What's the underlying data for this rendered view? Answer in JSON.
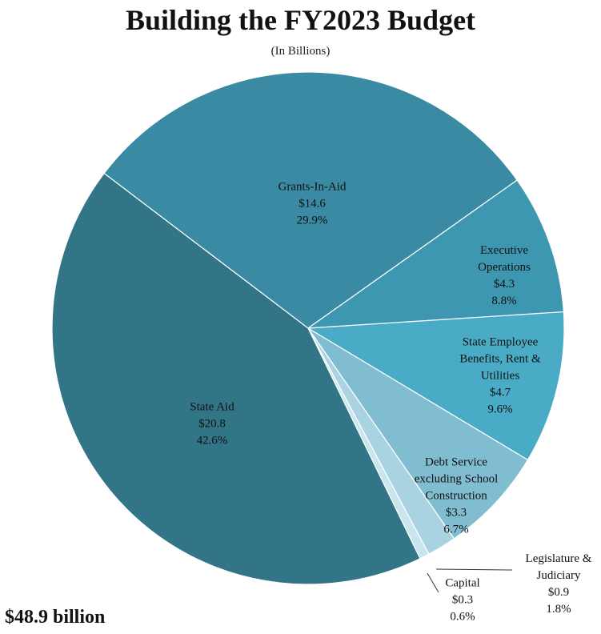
{
  "chart_data": {
    "type": "pie",
    "title": "Building the FY2023 Budget",
    "subtitle": "(In Billions)",
    "total_label": "$48.9 billion",
    "categories": [
      "Grants-In-Aid",
      "Executive Operations",
      "State Employee Benefits, Rent & Utilities",
      "Debt Service excluding School Construction",
      "Legislature & Judiciary",
      "Capital",
      "State Aid"
    ],
    "values": [
      14.6,
      4.3,
      4.7,
      3.3,
      0.9,
      0.3,
      20.8
    ],
    "value_labels": [
      "$14.6",
      "$4.3",
      "$4.7",
      "$3.3",
      "$0.9",
      "$0.3",
      "$20.8"
    ],
    "percents": [
      29.9,
      8.8,
      9.6,
      6.7,
      1.8,
      0.6,
      42.6
    ],
    "percent_labels": [
      "29.9%",
      "8.8%",
      "9.6%",
      "6.7%",
      "1.8%",
      "0.6%",
      "42.6%"
    ],
    "colors": [
      "#3a8aa3",
      "#3e97b1",
      "#4aabc7",
      "#80bdd0",
      "#a9d3e0",
      "#c9e5ee",
      "#327587"
    ]
  }
}
